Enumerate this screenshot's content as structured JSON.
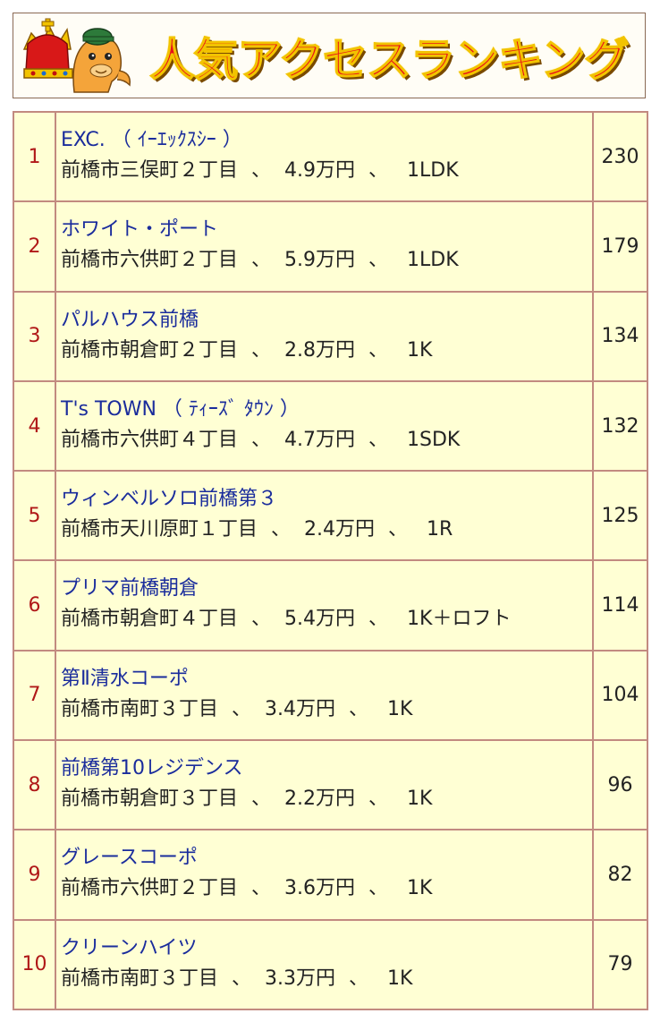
{
  "banner": {
    "title": "人気アクセスランキング",
    "mascot_icon": "crowned-horse-mascot-icon"
  },
  "separator": "、",
  "colors": {
    "cell_bg": "#ffffd4",
    "border": "#c28a80",
    "rank": "#b01818",
    "link": "#1a2c9c",
    "title": "#e8101a"
  },
  "ranking": [
    {
      "rank": "1",
      "name": "EXC. （ ｲｰｴｯｸｽｼｰ ）",
      "address": "前橋市三俣町２丁目",
      "price": "4.9万円",
      "layout": "1LDK",
      "count": "230"
    },
    {
      "rank": "2",
      "name": "ホワイト・ポート",
      "address": "前橋市六供町２丁目",
      "price": "5.9万円",
      "layout": "1LDK",
      "count": "179"
    },
    {
      "rank": "3",
      "name": "パルハウス前橋",
      "address": "前橋市朝倉町２丁目",
      "price": "2.8万円",
      "layout": "1K",
      "count": "134"
    },
    {
      "rank": "4",
      "name": "T's TOWN （ ﾃｨｰｽﾞ ﾀｳﾝ ）",
      "address": "前橋市六供町４丁目",
      "price": "4.7万円",
      "layout": "1SDK",
      "count": "132"
    },
    {
      "rank": "5",
      "name": "ウィンベルソロ前橋第３",
      "address": "前橋市天川原町１丁目",
      "price": "2.4万円",
      "layout": "1R",
      "count": "125"
    },
    {
      "rank": "6",
      "name": "プリマ前橋朝倉",
      "address": "前橋市朝倉町４丁目",
      "price": "5.4万円",
      "layout": "1K＋ロフト",
      "count": "114"
    },
    {
      "rank": "7",
      "name": "第Ⅱ清水コーポ",
      "address": "前橋市南町３丁目",
      "price": "3.4万円",
      "layout": "1K",
      "count": "104"
    },
    {
      "rank": "8",
      "name": "前橋第10レジデンス",
      "address": "前橋市朝倉町３丁目",
      "price": "2.2万円",
      "layout": "1K",
      "count": "96"
    },
    {
      "rank": "9",
      "name": "グレースコーポ",
      "address": "前橋市六供町２丁目",
      "price": "3.6万円",
      "layout": "1K",
      "count": "82"
    },
    {
      "rank": "10",
      "name": "クリーンハイツ",
      "address": "前橋市南町３丁目",
      "price": "3.3万円",
      "layout": "1K",
      "count": "79"
    }
  ]
}
